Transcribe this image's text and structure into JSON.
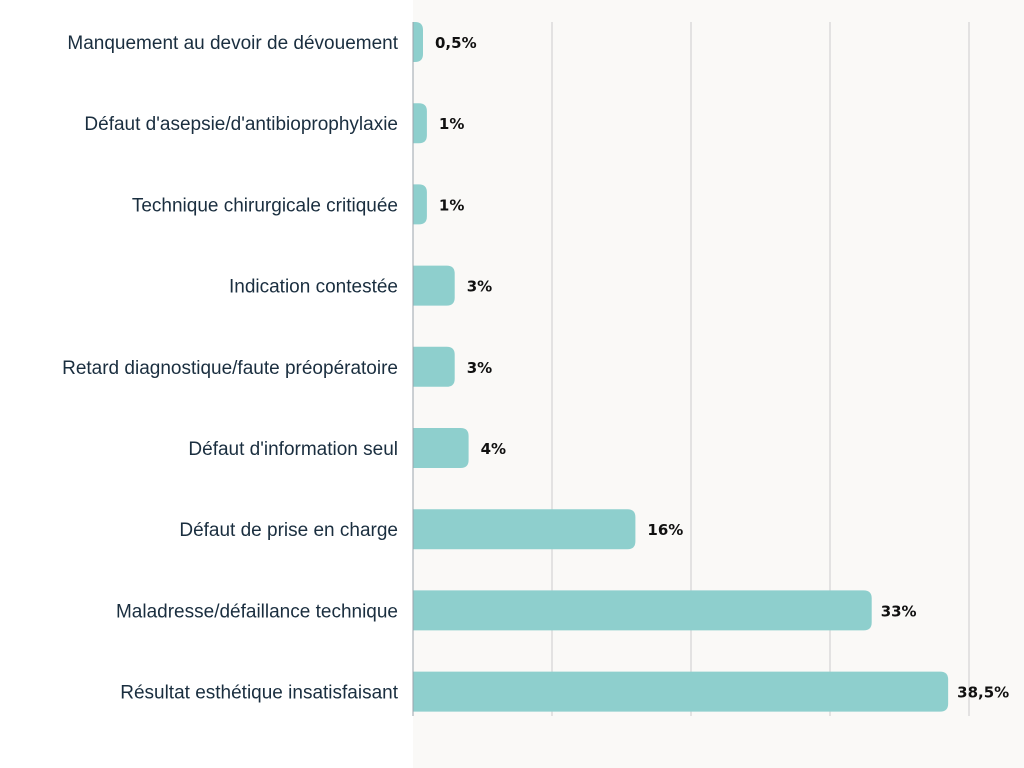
{
  "chart_data": {
    "type": "bar",
    "orientation": "horizontal",
    "categories": [
      "Manquement au devoir de dévouement",
      "Défaut d'asepsie/d'antibioprophylaxie",
      "Technique chirurgicale critiquée",
      "Indication contestée",
      "Retard diagnostique/faute préopératoire",
      "Défaut d'information seul",
      "Défaut de prise en charge",
      "Maladresse/défaillance technique",
      "Résultat esthétique insatisfaisant"
    ],
    "values": [
      0.5,
      1,
      1,
      3,
      3,
      4,
      16,
      33,
      38.5
    ],
    "value_labels": [
      "0,5%",
      "1%",
      "1%",
      "3%",
      "3%",
      "4%",
      "16%",
      "33%",
      "38,5%"
    ],
    "title": "",
    "xlabel": "",
    "ylabel": "",
    "xlim": [
      0,
      40
    ],
    "grid": "vertical",
    "legend": "none",
    "colors": {
      "bar": "#8ecfcd",
      "grid": "#cccccc",
      "axis": "#9aa3ab",
      "plot_background": "#faf9f7",
      "label_text": "#1a2e3f",
      "value_text": "#111111"
    }
  }
}
